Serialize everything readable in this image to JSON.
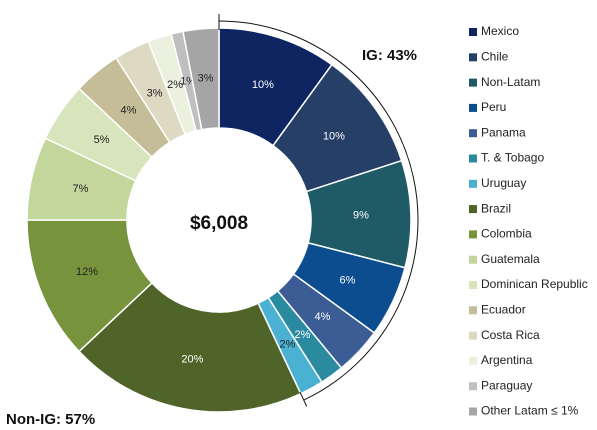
{
  "chart_data": {
    "type": "donut",
    "center_label": "$6,008",
    "annotations": [
      "IG: 43%",
      "Non-IG: 57%"
    ],
    "categories": [
      "Mexico",
      "Chile",
      "Non-Latam",
      "Peru",
      "Panama",
      "T. & Tobago",
      "Uruguay",
      "Brazil",
      "Colombia",
      "Guatemala",
      "Dominican Republic",
      "Ecuador",
      "Costa Rica",
      "Argentina",
      "Paraguay",
      "Other Latam ≤ 1%"
    ],
    "values": [
      10,
      10,
      9,
      6,
      4,
      2,
      2,
      20,
      12,
      7,
      5,
      4,
      3,
      2,
      1,
      3
    ],
    "value_labels": [
      "10%",
      "10%",
      "9%",
      "6%",
      "4%",
      "2%",
      "2%",
      "20%",
      "12%",
      "7%",
      "5%",
      "4%",
      "3%",
      "2%",
      "1%",
      "3%"
    ],
    "colors": [
      "#0f2562",
      "#253f66",
      "#1f5b66",
      "#0b4d8e",
      "#3b5c95",
      "#2a8ba0",
      "#4bb1d3",
      "#4f6428",
      "#77933c",
      "#c3d69b",
      "#d8e4bc",
      "#c4bd97",
      "#ddd9c3",
      "#ebf1de",
      "#bfbfbf",
      "#a6a6a6"
    ],
    "legend": "right"
  }
}
